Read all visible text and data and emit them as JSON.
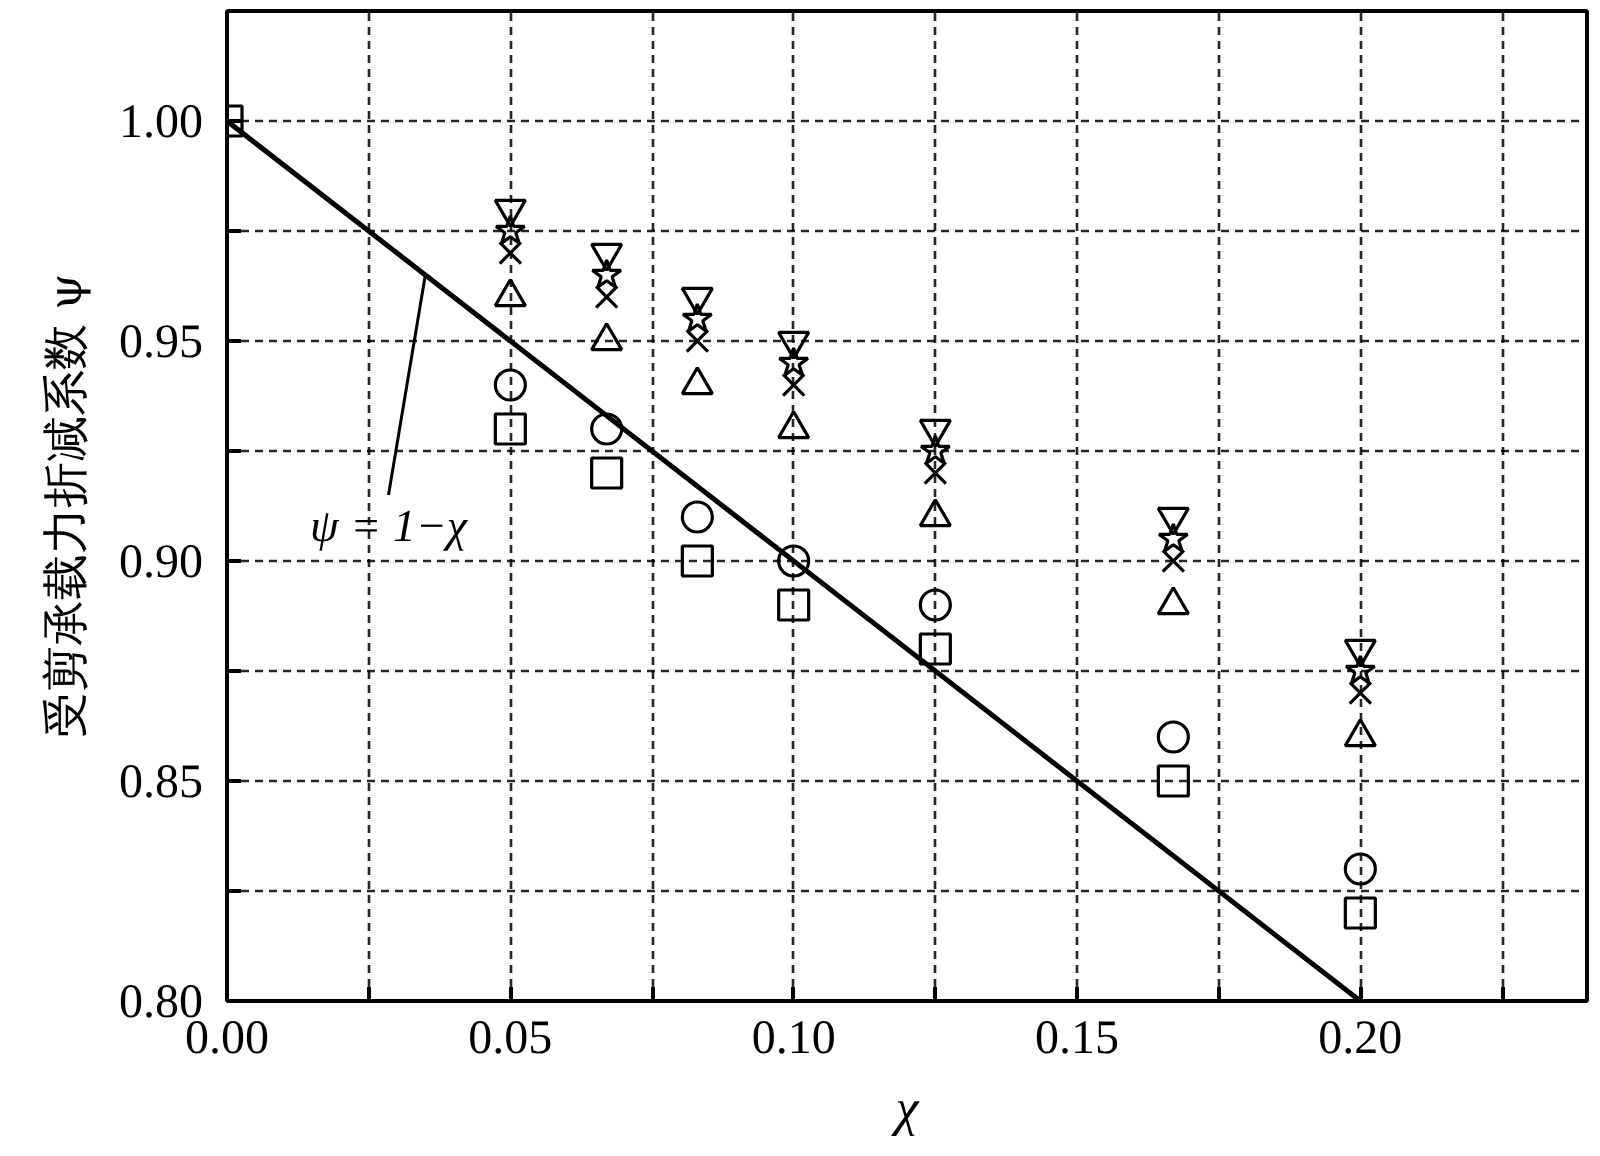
{
  "chart_data": {
    "type": "scatter",
    "xlabel": "χ",
    "ylabel": "受剪承载力折减系数 ψ",
    "x": [
      0,
      0.05,
      0.067,
      0.083,
      0.1,
      0.125,
      0.167,
      0.2
    ],
    "xlim": [
      0,
      0.24
    ],
    "ylim": [
      0.8,
      1.025
    ],
    "xticks": [
      {
        "value": 0,
        "label": "0.00"
      },
      {
        "value": 0.025,
        "label": null
      },
      {
        "value": 0.05,
        "label": "0.05"
      },
      {
        "value": 0.075,
        "label": null
      },
      {
        "value": 0.1,
        "label": "0.10"
      },
      {
        "value": 0.125,
        "label": null
      },
      {
        "value": 0.15,
        "label": "0.15"
      },
      {
        "value": 0.175,
        "label": null
      },
      {
        "value": 0.2,
        "label": "0.20"
      },
      {
        "value": 0.225,
        "label": null
      }
    ],
    "yticks": [
      {
        "value": 0.8,
        "label": "0.80"
      },
      {
        "value": 0.825,
        "label": null
      },
      {
        "value": 0.85,
        "label": "0.85"
      },
      {
        "value": 0.875,
        "label": null
      },
      {
        "value": 0.9,
        "label": "0.90"
      },
      {
        "value": 0.925,
        "label": null
      },
      {
        "value": 0.95,
        "label": "0.95"
      },
      {
        "value": 0.975,
        "label": null
      },
      {
        "value": 1.0,
        "label": "1.00"
      }
    ],
    "grid": true,
    "series": [
      {
        "type": "line",
        "x": [
          0,
          0.2
        ],
        "values": [
          1.0,
          0.8
        ],
        "color": "#000000",
        "line_style": "solid"
      },
      {
        "marker": "square",
        "color": "#000000",
        "values": [
          1.0,
          0.93,
          0.92,
          0.9,
          0.89,
          0.88,
          0.85,
          0.82
        ]
      },
      {
        "marker": "circle",
        "color": "#000000",
        "values": [
          null,
          0.94,
          0.93,
          0.91,
          0.9,
          0.89,
          0.86,
          0.83
        ]
      },
      {
        "color": "#000000",
        "values": [
          null,
          0.98,
          0.97,
          0.96,
          0.95,
          0.93,
          0.91,
          0.88
        ]
      },
      {
        "marker": "star",
        "color": "#000000",
        "values": [
          null,
          0.975,
          0.965,
          0.955,
          0.945,
          0.925,
          0.905,
          0.875
        ]
      },
      {
        "marker": "cross",
        "color": "#000000",
        "values": [
          null,
          0.97,
          0.96,
          0.95,
          0.94,
          0.92,
          0.9,
          0.87
        ]
      },
      {
        "marker": "triangle",
        "color": "#000000",
        "values": [
          null,
          0.96,
          0.95,
          0.94,
          0.93,
          0.91,
          0.89,
          0.86
        ]
      }
    ],
    "annotations": [
      {
        "text": "ψ = 1−χ",
        "x": 0.035,
        "y": 0.965
      }
    ]
  }
}
